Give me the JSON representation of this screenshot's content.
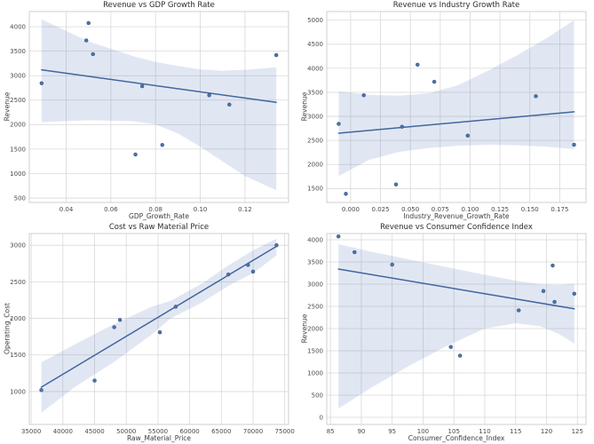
{
  "style": {
    "point_color": "#4c72b0",
    "point_edge_color": "#35557f",
    "line_color": "#41669f",
    "band_color": "#4c72b0",
    "band_opacity": 0.17,
    "grid_color": "#d9d9d9",
    "border_color": "#cfcfcf",
    "tick_color": "#4a4a4a",
    "background": "#ffffff"
  },
  "chart_data": [
    {
      "type": "scatter",
      "name": "revenue-vs-gdp-growth-rate",
      "title": "Revenue vs GDP Growth Rate",
      "xlabel": "GDP_Growth_Rate",
      "ylabel": "Revenue",
      "xlim": [
        0.0235,
        0.1395
      ],
      "ylim": [
        410,
        4310
      ],
      "xticks": {
        "values": [
          0.04,
          0.06,
          0.08,
          0.1,
          0.12
        ],
        "labels": [
          "0.04",
          "0.06",
          "0.08",
          "0.10",
          "0.12"
        ]
      },
      "yticks": {
        "values": [
          500,
          1000,
          1500,
          2000,
          2500,
          3000,
          3500,
          4000
        ],
        "labels": [
          "500",
          "1000",
          "1500",
          "2000",
          "2500",
          "3000",
          "3500",
          "4000"
        ]
      },
      "points": [
        [
          0.029,
          2845
        ],
        [
          0.049,
          3720
        ],
        [
          0.05,
          4075
        ],
        [
          0.052,
          3440
        ],
        [
          0.071,
          1390
        ],
        [
          0.074,
          2785
        ],
        [
          0.083,
          1585
        ],
        [
          0.104,
          2600
        ],
        [
          0.113,
          2410
        ],
        [
          0.134,
          3420
        ]
      ],
      "regression": {
        "x": [
          0.029,
          0.134
        ],
        "y": [
          3120,
          2455
        ]
      },
      "band": {
        "x": [
          0.029,
          0.05,
          0.07,
          0.08,
          0.09,
          0.1,
          0.11,
          0.12,
          0.134
        ],
        "upper": [
          4150,
          3700,
          3400,
          3280,
          3200,
          3130,
          3100,
          3120,
          3170
        ],
        "lower": [
          2050,
          2090,
          2070,
          2000,
          1820,
          1550,
          1250,
          950,
          660
        ]
      }
    },
    {
      "type": "scatter",
      "name": "revenue-vs-industry-growth-rate",
      "title": "Revenue vs Industry Growth Rate",
      "xlabel": "Industry_Revenue_Growth_Rate",
      "ylabel": "Revenue",
      "xlim": [
        -0.02,
        0.197
      ],
      "ylim": [
        1210,
        5180
      ],
      "xticks": {
        "values": [
          0.0,
          0.025,
          0.05,
          0.075,
          0.1,
          0.125,
          0.15,
          0.175
        ],
        "labels": [
          "0.000",
          "0.025",
          "0.050",
          "0.075",
          "0.100",
          "0.125",
          "0.150",
          "0.175"
        ]
      },
      "yticks": {
        "values": [
          1500,
          2000,
          2500,
          3000,
          3500,
          4000,
          4500,
          5000
        ],
        "labels": [
          "1500",
          "2000",
          "2500",
          "3000",
          "3500",
          "4000",
          "4500",
          "5000"
        ]
      },
      "points": [
        [
          -0.01,
          2845
        ],
        [
          -0.004,
          1390
        ],
        [
          0.011,
          3440
        ],
        [
          0.038,
          1585
        ],
        [
          0.043,
          2785
        ],
        [
          0.056,
          4075
        ],
        [
          0.07,
          3720
        ],
        [
          0.098,
          2600
        ],
        [
          0.155,
          3420
        ],
        [
          0.187,
          2410
        ]
      ],
      "regression": {
        "x": [
          -0.01,
          0.187
        ],
        "y": [
          2650,
          3095
        ]
      },
      "band": {
        "x": [
          -0.01,
          0.015,
          0.04,
          0.065,
          0.09,
          0.115,
          0.14,
          0.165,
          0.187
        ],
        "upper": [
          3520,
          3450,
          3430,
          3480,
          3650,
          3950,
          4280,
          4640,
          5000
        ],
        "lower": [
          1760,
          2090,
          2260,
          2340,
          2390,
          2410,
          2400,
          2370,
          2320
        ]
      }
    },
    {
      "type": "scatter",
      "name": "cost-vs-raw-material-price",
      "title": "Cost vs Raw Material Price",
      "xlabel": "Raw_Material_Price",
      "ylabel": "Operating_Cost",
      "xlim": [
        34700,
        75600
      ],
      "ylim": [
        550,
        3160
      ],
      "xticks": {
        "values": [
          35000,
          40000,
          45000,
          50000,
          55000,
          60000,
          65000,
          70000,
          75000
        ],
        "labels": [
          "35000",
          "40000",
          "45000",
          "50000",
          "55000",
          "60000",
          "65000",
          "70000",
          "75000"
        ]
      },
      "yticks": {
        "values": [
          1000,
          1500,
          2000,
          2500,
          3000
        ],
        "labels": [
          "1000",
          "1500",
          "2000",
          "2500",
          "3000"
        ]
      },
      "points": [
        [
          36600,
          1020
        ],
        [
          45000,
          1150
        ],
        [
          48100,
          1880
        ],
        [
          49000,
          1980
        ],
        [
          55300,
          1810
        ],
        [
          57800,
          2160
        ],
        [
          66100,
          2600
        ],
        [
          69200,
          2730
        ],
        [
          70000,
          2640
        ],
        [
          73700,
          3000
        ]
      ],
      "regression": {
        "x": [
          36600,
          73700
        ],
        "y": [
          1060,
          2985
        ]
      },
      "band": {
        "x": [
          36600,
          42000,
          48000,
          54000,
          57000,
          62000,
          66000,
          70000,
          73700
        ],
        "upper": [
          1400,
          1650,
          1920,
          2160,
          2240,
          2480,
          2720,
          2930,
          3090
        ],
        "lower": [
          710,
          1070,
          1400,
          1780,
          2000,
          2220,
          2440,
          2620,
          2860
        ]
      }
    },
    {
      "type": "scatter",
      "name": "revenue-vs-consumer-confidence-index",
      "title": "Revenue vs Consumer Confidence Index",
      "xlabel": "Consumer_Confidence_Index",
      "ylabel": "Revenue",
      "xlim": [
        84.4,
        126.4
      ],
      "ylim": [
        -160,
        4140
      ],
      "xticks": {
        "values": [
          85,
          90,
          95,
          100,
          105,
          110,
          115,
          120,
          125
        ],
        "labels": [
          "85",
          "90",
          "95",
          "100",
          "105",
          "110",
          "115",
          "120",
          "125"
        ]
      },
      "yticks": {
        "values": [
          0,
          500,
          1000,
          1500,
          2000,
          2500,
          3000,
          3500,
          4000
        ],
        "labels": [
          "0",
          "500",
          "1000",
          "1500",
          "2000",
          "2500",
          "3000",
          "3500",
          "4000"
        ]
      },
      "points": [
        [
          86.3,
          4075
        ],
        [
          88.9,
          3720
        ],
        [
          95.0,
          3440
        ],
        [
          104.5,
          1585
        ],
        [
          106.0,
          1390
        ],
        [
          115.5,
          2410
        ],
        [
          119.5,
          2845
        ],
        [
          121.0,
          3420
        ],
        [
          121.3,
          2600
        ],
        [
          124.5,
          2785
        ]
      ],
      "regression": {
        "x": [
          86.3,
          124.5
        ],
        "y": [
          3340,
          2445
        ]
      },
      "band": {
        "x": [
          86.3,
          92,
          98,
          104,
          110,
          115,
          119,
          122,
          124.5
        ],
        "upper": [
          3900,
          3720,
          3550,
          3380,
          3210,
          3080,
          3000,
          2980,
          3010
        ],
        "lower": [
          200,
          700,
          1180,
          1620,
          2000,
          2120,
          2050,
          1880,
          1660
        ]
      }
    }
  ]
}
